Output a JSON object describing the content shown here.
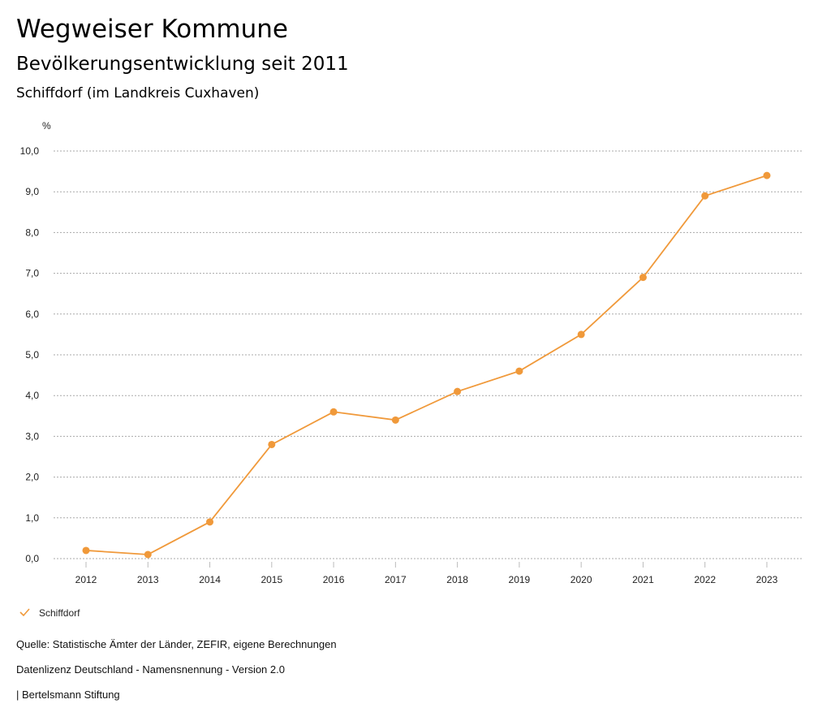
{
  "header": {
    "title": "Wegweiser Kommune",
    "subtitle": "Bevölkerungsentwicklung seit 2011",
    "location": "Schiffdorf (im Landkreis Cuxhaven)"
  },
  "chart_data": {
    "type": "line",
    "title": "Bevölkerungsentwicklung seit 2011",
    "ylabel": "%",
    "xlabel": "",
    "ylim": [
      0,
      10
    ],
    "yticks": [
      "0,0",
      "1,0",
      "2,0",
      "3,0",
      "4,0",
      "5,0",
      "6,0",
      "7,0",
      "8,0",
      "9,0",
      "10,0"
    ],
    "categories": [
      "2012",
      "2013",
      "2014",
      "2015",
      "2016",
      "2017",
      "2018",
      "2019",
      "2020",
      "2021",
      "2022",
      "2023"
    ],
    "series": [
      {
        "name": "Schiffdorf",
        "color": "#f0993a",
        "values": [
          0.2,
          0.1,
          0.9,
          2.8,
          3.6,
          3.4,
          4.1,
          4.6,
          5.5,
          6.9,
          8.9,
          9.4
        ]
      }
    ],
    "grid": true,
    "legend": "bottom-left"
  },
  "footer": {
    "source": "Quelle: Statistische Ämter der Länder, ZEFIR, eigene Berechnungen",
    "license": "Datenlizenz Deutschland - Namensnennung - Version 2.0",
    "credit": "| Bertelsmann Stiftung"
  }
}
